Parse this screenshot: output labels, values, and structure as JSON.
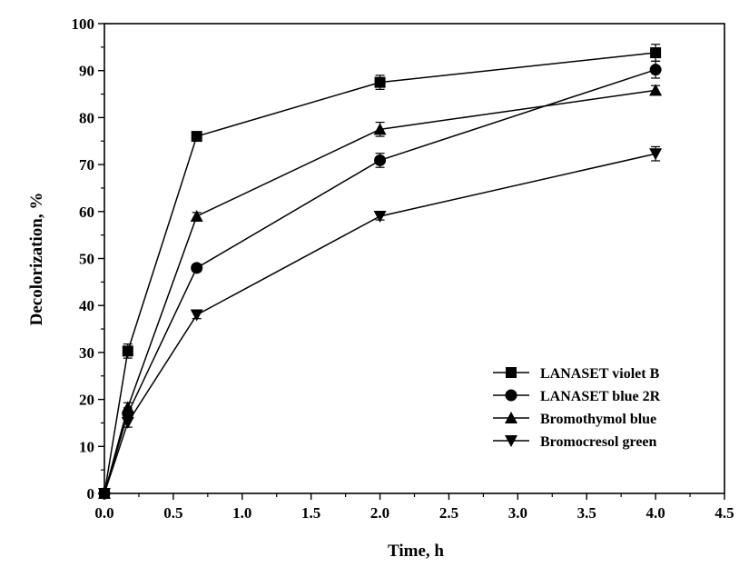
{
  "chart_data": {
    "type": "line",
    "xlabel": "Time, h",
    "ylabel": "Decolorization, %",
    "xlim": [
      0,
      4.5
    ],
    "ylim": [
      0,
      100
    ],
    "xticks": [
      "0.0",
      "0.5",
      "1.0",
      "1.5",
      "2.0",
      "2.5",
      "3.0",
      "3.5",
      "4.0",
      "4.5"
    ],
    "yticks": [
      "0",
      "10",
      "20",
      "30",
      "40",
      "50",
      "60",
      "70",
      "80",
      "90",
      "100"
    ],
    "grid": false,
    "legend_position": "bottom-right",
    "colors": {
      "line": "#000000",
      "background": "#ffffff"
    },
    "series": [
      {
        "name": "LANASET violet B",
        "marker": "square",
        "x": [
          0,
          0.17,
          0.67,
          2.0,
          4.0
        ],
        "y": [
          0,
          30.3,
          76.0,
          87.5,
          93.8
        ],
        "err": [
          0,
          1.5,
          0.8,
          1.5,
          1.8
        ]
      },
      {
        "name": "LANASET blue 2R",
        "marker": "circle",
        "x": [
          0,
          0.17,
          0.67,
          2.0,
          4.0
        ],
        "y": [
          0,
          17.0,
          48.0,
          70.9,
          90.2
        ],
        "err": [
          0,
          1.2,
          0.8,
          1.5,
          1.8
        ]
      },
      {
        "name": "Bromothymol blue",
        "marker": "triangle-up",
        "x": [
          0,
          0.17,
          0.67,
          2.0,
          4.0
        ],
        "y": [
          0,
          18.3,
          59.0,
          77.5,
          85.8
        ],
        "err": [
          0,
          1.0,
          0.8,
          1.5,
          1.0
        ]
      },
      {
        "name": "Bromocresol green",
        "marker": "triangle-down",
        "x": [
          0,
          0.17,
          0.67,
          2.0,
          4.0
        ],
        "y": [
          0,
          15.1,
          38.0,
          59.0,
          72.3
        ],
        "err": [
          0,
          1.0,
          0.8,
          0.8,
          1.5
        ]
      }
    ]
  }
}
